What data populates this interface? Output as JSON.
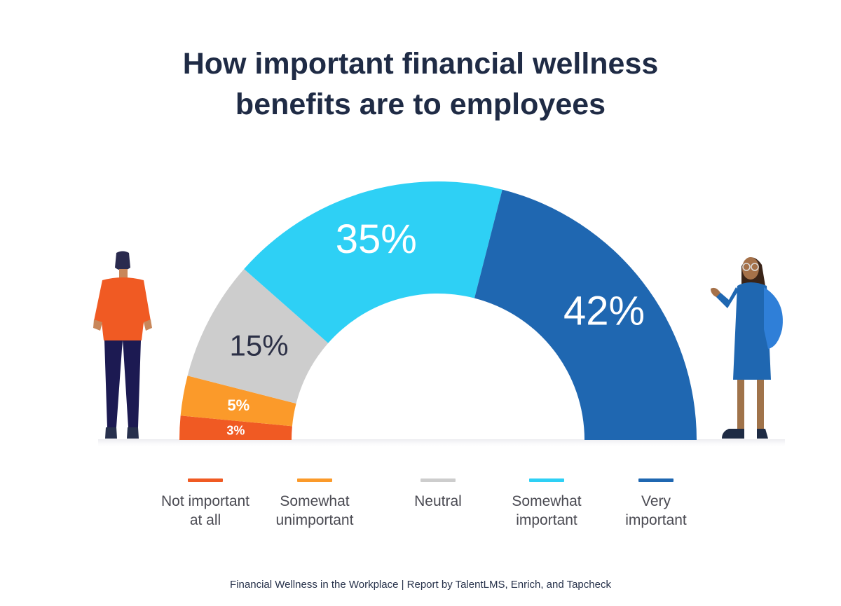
{
  "title": {
    "line1": "How important financial wellness",
    "line2": "benefits are to employees"
  },
  "chart_data": {
    "type": "pie",
    "subtype": "semi-donut",
    "title": "How important financial wellness benefits are to employees",
    "categories": [
      "Not important at all",
      "Somewhat unimportant",
      "Neutral",
      "Somewhat important",
      "Very important"
    ],
    "values": [
      3,
      5,
      15,
      35,
      42
    ],
    "data_labels": [
      "3%",
      "5%",
      "15%",
      "35%",
      "42%"
    ],
    "colors": [
      "#f05a23",
      "#fb9a2a",
      "#cdcdcd",
      "#2ed0f5",
      "#1f67b1"
    ],
    "label_colors": [
      "#ffffff",
      "#ffffff",
      "#2c3046",
      "#ffffff",
      "#ffffff"
    ],
    "legend_position": "bottom"
  },
  "legend": [
    {
      "label": "Not important\nat all",
      "color": "#f05a23"
    },
    {
      "label": "Somewhat\nunimportant",
      "color": "#fb9a2a"
    },
    {
      "label": "Neutral",
      "color": "#cdcdcd"
    },
    {
      "label": "Somewhat\nimportant",
      "color": "#2ed0f5"
    },
    {
      "label": "Very\nimportant",
      "color": "#1f67b1"
    }
  ],
  "footer": "Financial Wellness in the Workplace | Report by TalentLMS, Enrich, and Tapcheck",
  "illustrations": {
    "left": "man-standing-back-view-icon",
    "right": "woman-presenting-icon"
  }
}
